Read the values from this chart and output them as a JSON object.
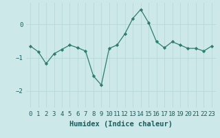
{
  "x": [
    0,
    1,
    2,
    3,
    4,
    5,
    6,
    7,
    8,
    9,
    10,
    11,
    12,
    13,
    14,
    15,
    16,
    17,
    18,
    19,
    20,
    21,
    22,
    23
  ],
  "y": [
    -0.65,
    -0.82,
    -1.18,
    -0.88,
    -0.75,
    -0.62,
    -0.7,
    -0.8,
    -1.55,
    -1.82,
    -0.72,
    -0.62,
    -0.28,
    0.18,
    0.45,
    0.05,
    -0.52,
    -0.7,
    -0.52,
    -0.62,
    -0.72,
    -0.72,
    -0.8,
    -0.65
  ],
  "line_color": "#2e7d6e",
  "marker": "D",
  "marker_size": 2.2,
  "bg_color": "#cce8e8",
  "grid_color": "#b8d8d8",
  "xlabel": "Humidex (Indice chaleur)",
  "ylim": [
    -2.5,
    0.65
  ],
  "yticks": [
    -2,
    -1,
    0
  ],
  "xlim": [
    -0.5,
    23.5
  ],
  "xlabel_fontsize": 7.5,
  "tick_fontsize": 6.5,
  "tick_color": "#1a5c5c",
  "label_color": "#1a5c5c"
}
